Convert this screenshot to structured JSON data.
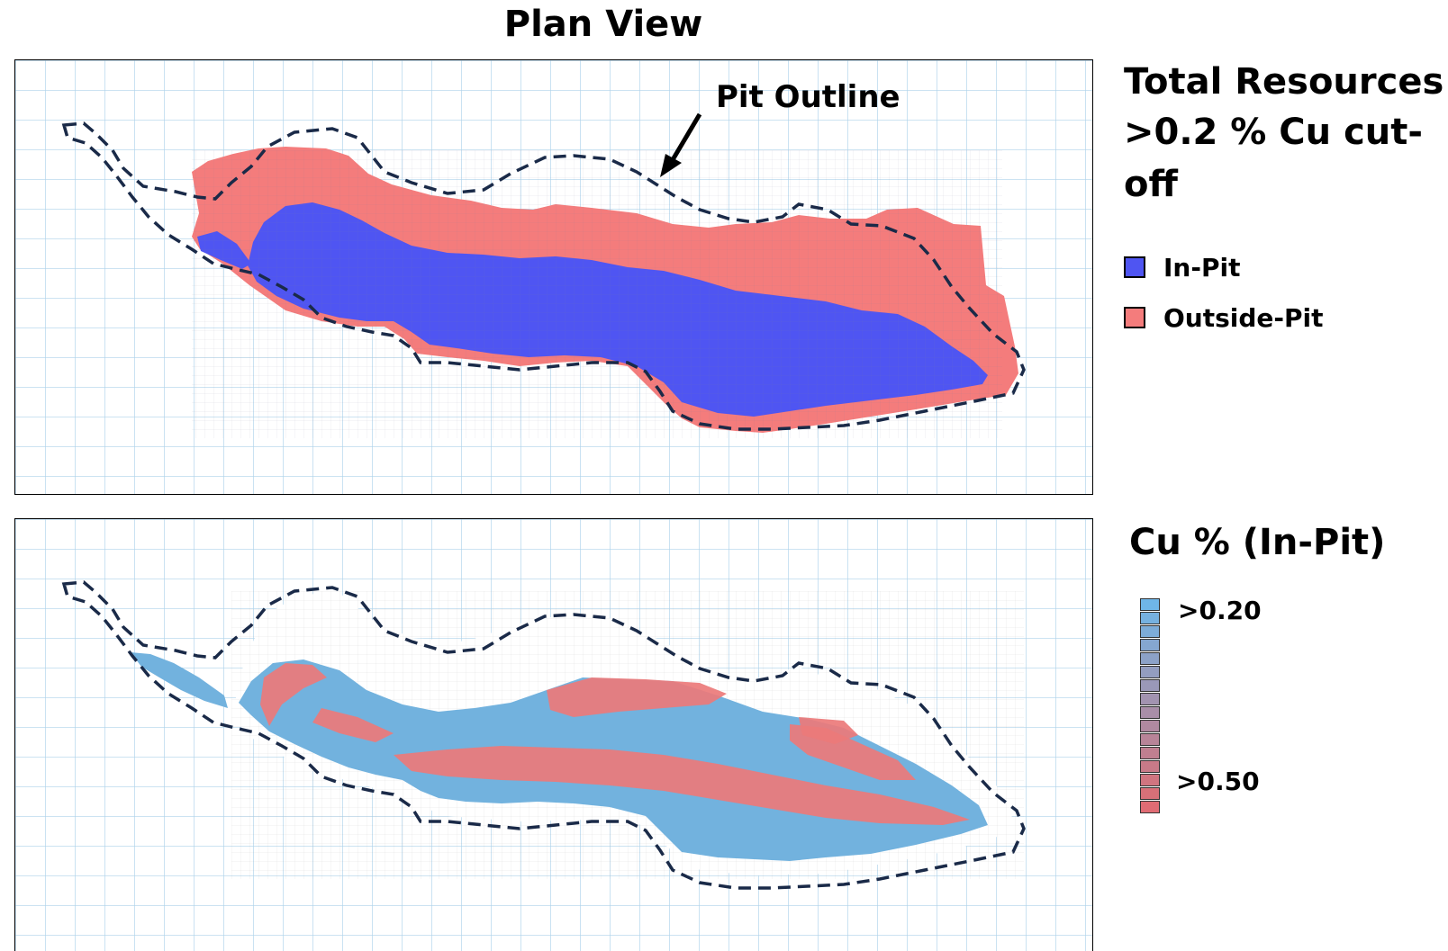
{
  "title": "Plan View",
  "top_panel": {
    "annotation": "Pit Outline",
    "legend_heading_line1": "Total Resources",
    "legend_heading_line2": ">0.2 % Cu cut-off",
    "legend": [
      {
        "label": "In-Pit",
        "color": "#4f55f2"
      },
      {
        "label": "Outside-Pit",
        "color": "#f47c7c"
      }
    ]
  },
  "bottom_panel": {
    "legend_heading": "Cu %  (In-Pit)",
    "scale_low_label": ">0.20",
    "scale_high_label": ">0.50",
    "scale_colors": [
      "#6fb6e8",
      "#76b1e0",
      "#7dacd8",
      "#85a7d0",
      "#8ca2c8",
      "#939dc0",
      "#9a98b8",
      "#a293b0",
      "#a98ea8",
      "#b089a0",
      "#b88498",
      "#c07f90",
      "#c87a88",
      "#d07580",
      "#d87078",
      "#e06c74"
    ]
  },
  "colors": {
    "grid": "#aed2ea",
    "outline": "#1a2a48",
    "in_pit": "#4f55f2",
    "outside_pit": "#f47c7c",
    "cu_low": "#72b2de",
    "cu_high": "#ec7a7a"
  }
}
